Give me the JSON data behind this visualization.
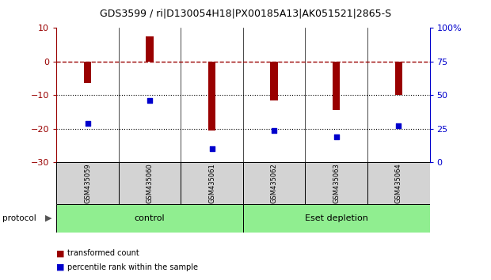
{
  "title": "GDS3599 / ri|D130054H18|PX00185A13|AK051521|2865-S",
  "categories": [
    "GSM435059",
    "GSM435060",
    "GSM435061",
    "GSM435062",
    "GSM435063",
    "GSM435064"
  ],
  "bar_values": [
    -6.5,
    7.5,
    -20.5,
    -11.5,
    -14.5,
    -10.0
  ],
  "blue_dot_values": [
    -18.5,
    -11.5,
    -26.0,
    -20.5,
    -22.5,
    -19.0
  ],
  "left_ylim": [
    -30,
    10
  ],
  "left_yticks": [
    10,
    0,
    -10,
    -20,
    -30
  ],
  "right_ylim": [
    0,
    100
  ],
  "right_yticks": [
    0,
    25,
    50,
    75,
    100
  ],
  "right_yticklabels": [
    "0",
    "25",
    "50",
    "75",
    "100%"
  ],
  "bar_color": "#990000",
  "dot_color": "#0000cc",
  "dotted_lines": [
    -10,
    -20
  ],
  "green_color": "#90ee90",
  "gray_color": "#d3d3d3",
  "legend_items": [
    {
      "label": "transformed count",
      "color": "#990000"
    },
    {
      "label": "percentile rank within the sample",
      "color": "#0000cc"
    }
  ],
  "protocol_label": "protocol",
  "bar_width": 0.12,
  "dot_size": 25
}
